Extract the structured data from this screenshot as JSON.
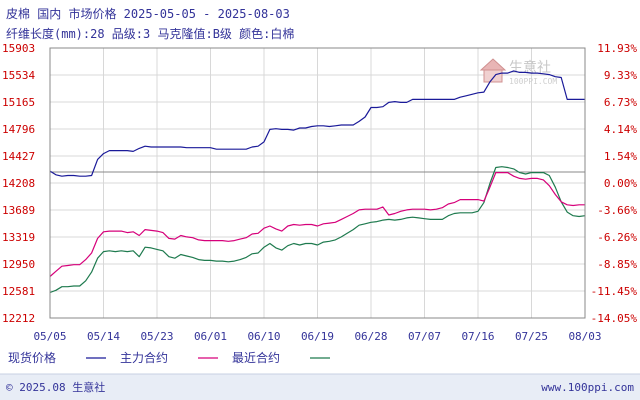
{
  "header": {
    "line1": "皮棉 国内 市场价格 2025-05-05 - 2025-08-03",
    "line2": "纤维长度(mm):28 品级:3 马克隆值:B级 颜色:白棉"
  },
  "watermark": {
    "text": "生意社",
    "url": "100PPI.COM"
  },
  "footer": {
    "left": "© 2025.08 生意社",
    "right": "www.100ppi.com"
  },
  "colors": {
    "title": "#333399",
    "left_axis": "#cc0000",
    "right_axis": "#cc0000",
    "x_axis": "#333399",
    "grid": "#d8d8d8",
    "zero_line": "#888888",
    "spot": "#1a1a99",
    "main": "#d6007a",
    "recent": "#1e7a4e",
    "footer_bg": "#e8edf6"
  },
  "chart_data": {
    "type": "line",
    "title": "皮棉 国内 市场价格 2025-05-05 - 2025-08-03",
    "subtitle": "纤维长度(mm):28 品级:3 马克隆值:B级 颜色:白棉",
    "x_ticks": [
      "05/05",
      "05/14",
      "05/23",
      "06/01",
      "06/10",
      "06/19",
      "06/28",
      "07/07",
      "07/16",
      "07/25",
      "08/03"
    ],
    "x_range": [
      "2025-05-05",
      "2025-08-03"
    ],
    "y_left_ticks": [
      "15903",
      "15534",
      "15165",
      "14796",
      "14427",
      "14208",
      "13689",
      "13319",
      "12950",
      "12581",
      "12212"
    ],
    "y_left_range": [
      12212,
      15903
    ],
    "y_right_ticks": [
      "11.93%",
      "9.33%",
      "6.73%",
      "4.14%",
      "1.54%",
      "0.00%",
      "-3.66%",
      "-6.26%",
      "-8.85%",
      "-11.45%",
      "-14.05%"
    ],
    "baseline": 14208,
    "grid": true,
    "legend_position": "bottom",
    "series": [
      {
        "name": "现货价格",
        "color": "#1a1a99",
        "points": [
          [
            "05-05",
            14220
          ],
          [
            "05-06",
            14170
          ],
          [
            "05-07",
            14150
          ],
          [
            "05-08",
            14160
          ],
          [
            "05-09",
            14160
          ],
          [
            "05-10",
            14150
          ],
          [
            "05-11",
            14150
          ],
          [
            "05-12",
            14160
          ],
          [
            "05-13",
            14380
          ],
          [
            "05-14",
            14460
          ],
          [
            "05-15",
            14500
          ],
          [
            "05-16",
            14500
          ],
          [
            "05-17",
            14500
          ],
          [
            "05-18",
            14500
          ],
          [
            "05-19",
            14490
          ],
          [
            "05-20",
            14530
          ],
          [
            "05-21",
            14560
          ],
          [
            "05-22",
            14550
          ],
          [
            "05-23",
            14550
          ],
          [
            "05-24",
            14550
          ],
          [
            "05-25",
            14550
          ],
          [
            "05-26",
            14550
          ],
          [
            "05-27",
            14550
          ],
          [
            "05-28",
            14540
          ],
          [
            "05-29",
            14540
          ],
          [
            "05-30",
            14540
          ],
          [
            "05-31",
            14540
          ],
          [
            "06-01",
            14540
          ],
          [
            "06-02",
            14520
          ],
          [
            "06-03",
            14520
          ],
          [
            "06-04",
            14520
          ],
          [
            "06-05",
            14520
          ],
          [
            "06-06",
            14520
          ],
          [
            "06-07",
            14520
          ],
          [
            "06-08",
            14550
          ],
          [
            "06-09",
            14560
          ],
          [
            "06-10",
            14620
          ],
          [
            "06-11",
            14790
          ],
          [
            "06-12",
            14800
          ],
          [
            "06-13",
            14790
          ],
          [
            "06-14",
            14790
          ],
          [
            "06-15",
            14780
          ],
          [
            "06-16",
            14810
          ],
          [
            "06-17",
            14810
          ],
          [
            "06-18",
            14830
          ],
          [
            "06-19",
            14840
          ],
          [
            "06-20",
            14840
          ],
          [
            "06-21",
            14830
          ],
          [
            "06-22",
            14840
          ],
          [
            "06-23",
            14850
          ],
          [
            "06-24",
            14850
          ],
          [
            "06-25",
            14850
          ],
          [
            "06-26",
            14900
          ],
          [
            "06-27",
            14960
          ],
          [
            "06-28",
            15090
          ],
          [
            "06-29",
            15090
          ],
          [
            "06-30",
            15100
          ],
          [
            "07-01",
            15160
          ],
          [
            "07-02",
            15170
          ],
          [
            "07-03",
            15160
          ],
          [
            "07-04",
            15160
          ],
          [
            "07-05",
            15200
          ],
          [
            "07-06",
            15200
          ],
          [
            "07-07",
            15200
          ],
          [
            "07-08",
            15200
          ],
          [
            "07-09",
            15200
          ],
          [
            "07-10",
            15200
          ],
          [
            "07-11",
            15200
          ],
          [
            "07-12",
            15200
          ],
          [
            "07-13",
            15230
          ],
          [
            "07-14",
            15250
          ],
          [
            "07-15",
            15270
          ],
          [
            "07-16",
            15290
          ],
          [
            "07-17",
            15300
          ],
          [
            "07-18",
            15440
          ],
          [
            "07-19",
            15540
          ],
          [
            "07-20",
            15560
          ],
          [
            "07-21",
            15560
          ],
          [
            "07-22",
            15590
          ],
          [
            "07-23",
            15570
          ],
          [
            "07-24",
            15570
          ],
          [
            "07-25",
            15560
          ],
          [
            "07-26",
            15560
          ],
          [
            "07-27",
            15550
          ],
          [
            "07-28",
            15540
          ],
          [
            "07-29",
            15510
          ],
          [
            "07-30",
            15500
          ],
          [
            "07-31",
            15200
          ],
          [
            "08-01",
            15200
          ],
          [
            "08-02",
            15200
          ],
          [
            "08-03",
            15200
          ]
        ]
      },
      {
        "name": "主力合约",
        "color": "#d6007a",
        "points": [
          [
            "05-05",
            12780
          ],
          [
            "05-06",
            12850
          ],
          [
            "05-07",
            12920
          ],
          [
            "05-08",
            12930
          ],
          [
            "05-09",
            12940
          ],
          [
            "05-10",
            12940
          ],
          [
            "05-11",
            13010
          ],
          [
            "05-12",
            13100
          ],
          [
            "05-13",
            13300
          ],
          [
            "05-14",
            13390
          ],
          [
            "05-15",
            13400
          ],
          [
            "05-16",
            13400
          ],
          [
            "05-17",
            13400
          ],
          [
            "05-18",
            13380
          ],
          [
            "05-19",
            13390
          ],
          [
            "05-20",
            13340
          ],
          [
            "05-21",
            13420
          ],
          [
            "05-22",
            13410
          ],
          [
            "05-23",
            13400
          ],
          [
            "05-24",
            13380
          ],
          [
            "05-25",
            13300
          ],
          [
            "05-26",
            13290
          ],
          [
            "05-27",
            13340
          ],
          [
            "05-28",
            13320
          ],
          [
            "05-29",
            13310
          ],
          [
            "05-30",
            13280
          ],
          [
            "05-31",
            13270
          ],
          [
            "06-01",
            13270
          ],
          [
            "06-02",
            13270
          ],
          [
            "06-03",
            13270
          ],
          [
            "06-04",
            13260
          ],
          [
            "06-05",
            13270
          ],
          [
            "06-06",
            13290
          ],
          [
            "06-07",
            13310
          ],
          [
            "06-08",
            13360
          ],
          [
            "06-09",
            13370
          ],
          [
            "06-10",
            13440
          ],
          [
            "06-11",
            13470
          ],
          [
            "06-12",
            13430
          ],
          [
            "06-13",
            13400
          ],
          [
            "06-14",
            13470
          ],
          [
            "06-15",
            13490
          ],
          [
            "06-16",
            13480
          ],
          [
            "06-17",
            13490
          ],
          [
            "06-18",
            13490
          ],
          [
            "06-19",
            13470
          ],
          [
            "06-20",
            13500
          ],
          [
            "06-21",
            13510
          ],
          [
            "06-22",
            13520
          ],
          [
            "06-23",
            13560
          ],
          [
            "06-24",
            13600
          ],
          [
            "06-25",
            13640
          ],
          [
            "06-26",
            13690
          ],
          [
            "06-27",
            13700
          ],
          [
            "06-28",
            13700
          ],
          [
            "06-29",
            13700
          ],
          [
            "06-30",
            13730
          ],
          [
            "07-01",
            13620
          ],
          [
            "07-02",
            13640
          ],
          [
            "07-03",
            13670
          ],
          [
            "07-04",
            13690
          ],
          [
            "07-05",
            13700
          ],
          [
            "07-06",
            13700
          ],
          [
            "07-07",
            13700
          ],
          [
            "07-08",
            13690
          ],
          [
            "07-09",
            13700
          ],
          [
            "07-10",
            13720
          ],
          [
            "07-11",
            13770
          ],
          [
            "07-12",
            13790
          ],
          [
            "07-13",
            13830
          ],
          [
            "07-14",
            13830
          ],
          [
            "07-15",
            13830
          ],
          [
            "07-16",
            13830
          ],
          [
            "07-17",
            13810
          ],
          [
            "07-18",
            14000
          ],
          [
            "07-19",
            14200
          ],
          [
            "07-20",
            14200
          ],
          [
            "07-21",
            14200
          ],
          [
            "07-22",
            14150
          ],
          [
            "07-23",
            14120
          ],
          [
            "07-24",
            14110
          ],
          [
            "07-25",
            14120
          ],
          [
            "07-26",
            14120
          ],
          [
            "07-27",
            14100
          ],
          [
            "07-28",
            14020
          ],
          [
            "07-29",
            13900
          ],
          [
            "07-30",
            13800
          ],
          [
            "07-31",
            13760
          ],
          [
            "08-01",
            13750
          ],
          [
            "08-02",
            13760
          ],
          [
            "08-03",
            13760
          ]
        ]
      },
      {
        "name": "最近合约",
        "color": "#1e7a4e",
        "points": [
          [
            "05-05",
            12560
          ],
          [
            "05-06",
            12590
          ],
          [
            "05-07",
            12640
          ],
          [
            "05-08",
            12640
          ],
          [
            "05-09",
            12650
          ],
          [
            "05-10",
            12650
          ],
          [
            "05-11",
            12720
          ],
          [
            "05-12",
            12840
          ],
          [
            "05-13",
            13030
          ],
          [
            "05-14",
            13120
          ],
          [
            "05-15",
            13130
          ],
          [
            "05-16",
            13120
          ],
          [
            "05-17",
            13130
          ],
          [
            "05-18",
            13120
          ],
          [
            "05-19",
            13130
          ],
          [
            "05-20",
            13050
          ],
          [
            "05-21",
            13180
          ],
          [
            "05-22",
            13170
          ],
          [
            "05-23",
            13150
          ],
          [
            "05-24",
            13130
          ],
          [
            "05-25",
            13050
          ],
          [
            "05-26",
            13030
          ],
          [
            "05-27",
            13080
          ],
          [
            "05-28",
            13060
          ],
          [
            "05-29",
            13040
          ],
          [
            "05-30",
            13010
          ],
          [
            "05-31",
            13000
          ],
          [
            "06-01",
            13000
          ],
          [
            "06-02",
            12990
          ],
          [
            "06-03",
            12990
          ],
          [
            "06-04",
            12980
          ],
          [
            "06-05",
            12990
          ],
          [
            "06-06",
            13010
          ],
          [
            "06-07",
            13040
          ],
          [
            "06-08",
            13090
          ],
          [
            "06-09",
            13100
          ],
          [
            "06-10",
            13180
          ],
          [
            "06-11",
            13230
          ],
          [
            "06-12",
            13170
          ],
          [
            "06-13",
            13140
          ],
          [
            "06-14",
            13200
          ],
          [
            "06-15",
            13230
          ],
          [
            "06-16",
            13210
          ],
          [
            "06-17",
            13230
          ],
          [
            "06-18",
            13230
          ],
          [
            "06-19",
            13210
          ],
          [
            "06-20",
            13250
          ],
          [
            "06-21",
            13260
          ],
          [
            "06-22",
            13280
          ],
          [
            "06-23",
            13320
          ],
          [
            "06-24",
            13370
          ],
          [
            "06-25",
            13420
          ],
          [
            "06-26",
            13480
          ],
          [
            "06-27",
            13500
          ],
          [
            "06-28",
            13520
          ],
          [
            "06-29",
            13530
          ],
          [
            "06-30",
            13550
          ],
          [
            "07-01",
            13560
          ],
          [
            "07-02",
            13550
          ],
          [
            "07-03",
            13560
          ],
          [
            "07-04",
            13580
          ],
          [
            "07-05",
            13590
          ],
          [
            "07-06",
            13580
          ],
          [
            "07-07",
            13570
          ],
          [
            "07-08",
            13560
          ],
          [
            "07-09",
            13560
          ],
          [
            "07-10",
            13560
          ],
          [
            "07-11",
            13610
          ],
          [
            "07-12",
            13640
          ],
          [
            "07-13",
            13650
          ],
          [
            "07-14",
            13650
          ],
          [
            "07-15",
            13650
          ],
          [
            "07-16",
            13670
          ],
          [
            "07-17",
            13790
          ],
          [
            "07-18",
            14050
          ],
          [
            "07-19",
            14270
          ],
          [
            "07-20",
            14280
          ],
          [
            "07-21",
            14270
          ],
          [
            "07-22",
            14250
          ],
          [
            "07-23",
            14200
          ],
          [
            "07-24",
            14180
          ],
          [
            "07-25",
            14200
          ],
          [
            "07-26",
            14200
          ],
          [
            "07-27",
            14200
          ],
          [
            "07-28",
            14160
          ],
          [
            "07-29",
            14000
          ],
          [
            "07-30",
            13800
          ],
          [
            "07-31",
            13660
          ],
          [
            "08-01",
            13610
          ],
          [
            "08-02",
            13600
          ],
          [
            "08-03",
            13610
          ]
        ]
      }
    ]
  }
}
